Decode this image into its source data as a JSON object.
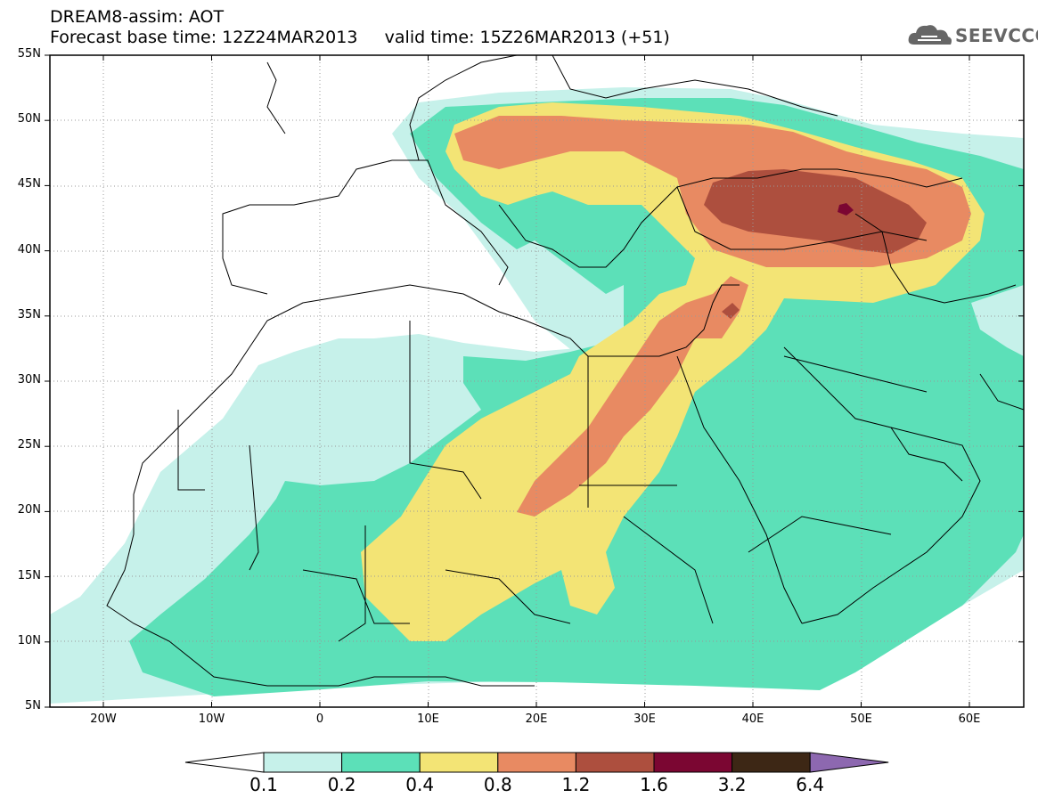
{
  "header": {
    "title": "DREAM8-assim: AOT",
    "subtitle": "Forecast base time: 12Z24MAR2013     valid time: 15Z26MAR2013 (+51)",
    "logo_text": "SEEVCCC"
  },
  "map": {
    "lat_labels": [
      "55N",
      "50N",
      "45N",
      "40N",
      "35N",
      "30N",
      "25N",
      "20N",
      "15N",
      "10N",
      "5N"
    ],
    "lon_labels": [
      "20W",
      "10W",
      "0",
      "10E",
      "20E",
      "30E",
      "40E",
      "50E",
      "60E"
    ],
    "grid": "dotted",
    "colors": {
      "land": "#ffffff",
      "c1": "#c6f1ea",
      "c2": "#5ce0b8",
      "c3": "#f3e475",
      "c4": "#e88a62",
      "c5": "#ad4f3e",
      "c6": "#7b0632",
      "c7": "#3d2715",
      "c8": "#8d68b0"
    }
  },
  "colorbar": {
    "labels": [
      "0.1",
      "0.2",
      "0.4",
      "0.8",
      "1.2",
      "1.6",
      "3.2",
      "6.4"
    ],
    "colors": [
      "#c6f1ea",
      "#5ce0b8",
      "#f3e475",
      "#e88a62",
      "#ad4f3e",
      "#7b0632",
      "#3d2715"
    ],
    "over_color": "#8d68b0",
    "under_color": "#ffffff"
  }
}
